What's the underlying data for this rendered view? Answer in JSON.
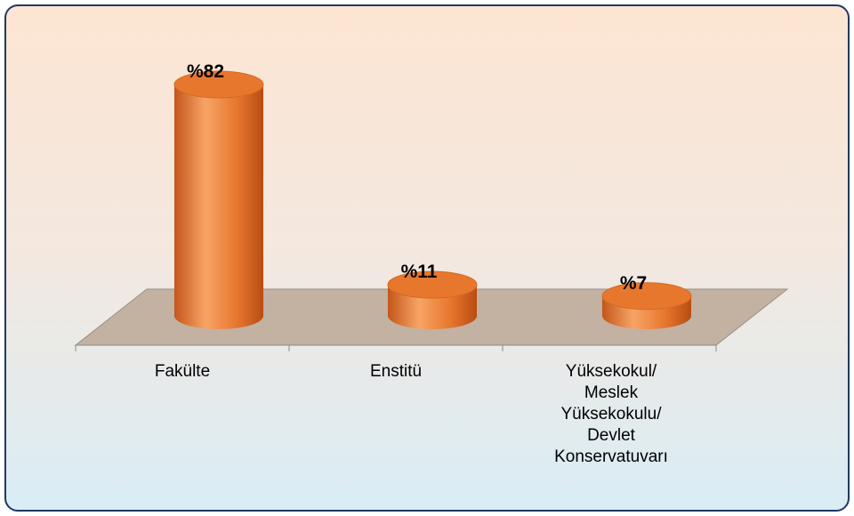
{
  "chart_data": {
    "type": "bar3d",
    "categories": [
      "Fakülte",
      "Enstitü",
      "Yüksekokul/ Meslek Yüksekokulu/ Devlet Konservatuvarı"
    ],
    "values": [
      82,
      11,
      7
    ],
    "value_labels": [
      "%82",
      "%11",
      "%7"
    ],
    "color": "#e8772e"
  }
}
